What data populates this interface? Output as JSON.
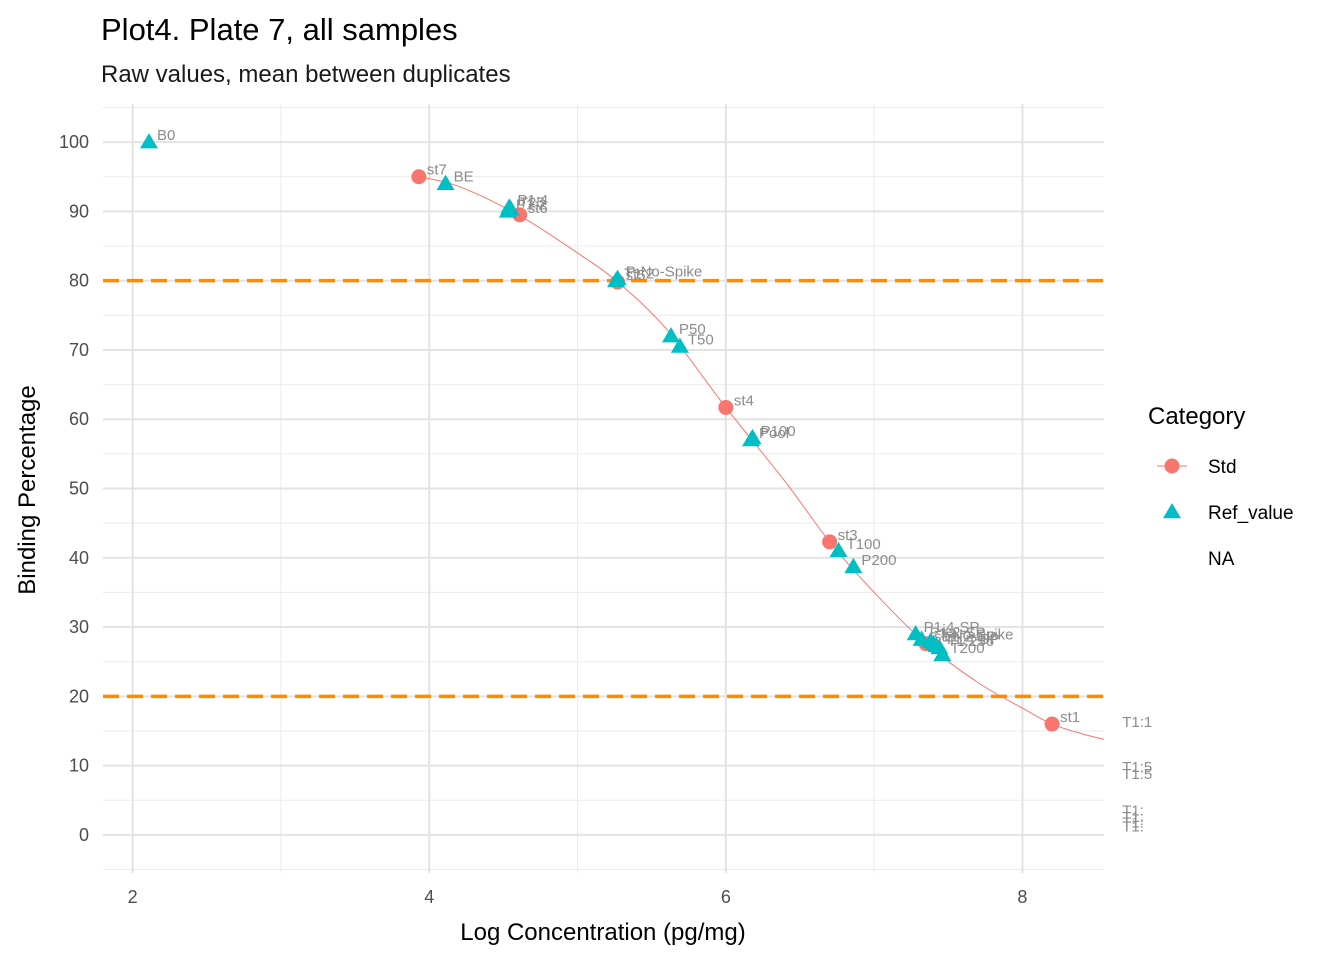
{
  "chart_data": {
    "type": "scatter",
    "title": "Plot4. Plate 7, all samples",
    "subtitle": "Raw values, mean between duplicates",
    "xlabel": "Log Concentration (pg/mg)",
    "ylabel": "Binding Percentage",
    "xlim": [
      1.8,
      8.55
    ],
    "ylim": [
      -5.5,
      105.5
    ],
    "xticks": [
      2,
      4,
      6,
      8
    ],
    "yticks": [
      0,
      10,
      20,
      30,
      40,
      50,
      60,
      70,
      80,
      90,
      100
    ],
    "grid": true,
    "reference_lines": [
      {
        "y": 80,
        "color": "#ff8c00",
        "style": "dashed"
      },
      {
        "y": 20,
        "color": "#ff8c00",
        "style": "dashed"
      }
    ],
    "legend": {
      "title": "Category",
      "position": "right",
      "entries": [
        {
          "label": "Std",
          "shape": "circle",
          "color": "#f8766d"
        },
        {
          "label": "Ref_value",
          "shape": "triangle",
          "color": "#00bfc4"
        },
        {
          "label": "NA",
          "shape": "none",
          "color": ""
        }
      ]
    },
    "fit_curve": {
      "color": "#f8766d",
      "points": [
        [
          3.93,
          95.0
        ],
        [
          4.2,
          93.6
        ],
        [
          4.6,
          89.5
        ],
        [
          5.0,
          84.0
        ],
        [
          5.27,
          79.8
        ],
        [
          5.6,
          73.0
        ],
        [
          6.0,
          61.7
        ],
        [
          6.4,
          51.0
        ],
        [
          6.7,
          42.3
        ],
        [
          7.0,
          35.0
        ],
        [
          7.35,
          27.6
        ],
        [
          7.7,
          22.0
        ],
        [
          8.0,
          18.3
        ],
        [
          8.2,
          16.0
        ],
        [
          8.4,
          14.6
        ],
        [
          8.55,
          13.8
        ]
      ]
    },
    "series": [
      {
        "name": "Std",
        "shape": "circle",
        "color": "#f8766d",
        "points": [
          {
            "x": 3.93,
            "y": 95.0,
            "label": "st7"
          },
          {
            "x": 4.61,
            "y": 89.5,
            "label": "st6"
          },
          {
            "x": 5.27,
            "y": 79.8,
            "label": "st5"
          },
          {
            "x": 6.0,
            "y": 61.7,
            "label": "st4"
          },
          {
            "x": 6.7,
            "y": 42.3,
            "label": "st3"
          },
          {
            "x": 7.35,
            "y": 27.6,
            "label": "st2"
          },
          {
            "x": 8.2,
            "y": 16.0,
            "label": "st1"
          }
        ]
      },
      {
        "name": "Ref_value",
        "shape": "triangle",
        "color": "#00bfc4",
        "points": [
          {
            "x": 2.11,
            "y": 100.0,
            "label": "B0"
          },
          {
            "x": 4.11,
            "y": 94.0,
            "label": "BE"
          },
          {
            "x": 4.54,
            "y": 90.6,
            "label": "P1:4"
          },
          {
            "x": 4.55,
            "y": 90.3,
            "label": "T25"
          },
          {
            "x": 4.53,
            "y": 90.0,
            "label": "P1:2"
          },
          {
            "x": 5.27,
            "y": 80.3,
            "label": "P-No-Spike"
          },
          {
            "x": 5.26,
            "y": 80.0,
            "label": "T1:2"
          },
          {
            "x": 5.63,
            "y": 72.0,
            "label": "P50"
          },
          {
            "x": 5.69,
            "y": 70.5,
            "label": "T50"
          },
          {
            "x": 6.18,
            "y": 57.3,
            "label": "P100"
          },
          {
            "x": 6.17,
            "y": 57.0,
            "label": "Pool"
          },
          {
            "x": 6.76,
            "y": 41.0,
            "label": "T100"
          },
          {
            "x": 6.86,
            "y": 38.7,
            "label": "P200"
          },
          {
            "x": 7.28,
            "y": 29.0,
            "label": "P1:4-SP"
          },
          {
            "x": 7.32,
            "y": 28.2,
            "label": "P1:2-SP"
          },
          {
            "x": 7.38,
            "y": 27.9,
            "label": "T-No-Spike"
          },
          {
            "x": 7.4,
            "y": 27.6,
            "label": "T1:2-SP"
          },
          {
            "x": 7.42,
            "y": 27.3,
            "label": "T1:4-SP"
          },
          {
            "x": 7.44,
            "y": 27.0,
            "label": "T1:256"
          },
          {
            "x": 7.46,
            "y": 26.0,
            "label": "T200"
          }
        ]
      },
      {
        "name": "NA",
        "shape": "none",
        "color": "",
        "points": [
          {
            "x": 8.7,
            "y": 15.3,
            "label": "T1:1"
          },
          {
            "x": 8.7,
            "y": 8.8,
            "label": "T1:5"
          },
          {
            "x": 8.7,
            "y": 7.8,
            "label": "T1:5"
          },
          {
            "x": 8.7,
            "y": 2.5,
            "label": "T1:"
          },
          {
            "x": 8.7,
            "y": 1.6,
            "label": "T1:"
          },
          {
            "x": 8.7,
            "y": 0.8,
            "label": "T1:"
          },
          {
            "x": 8.7,
            "y": 0.2,
            "label": "T1:"
          }
        ]
      }
    ]
  }
}
